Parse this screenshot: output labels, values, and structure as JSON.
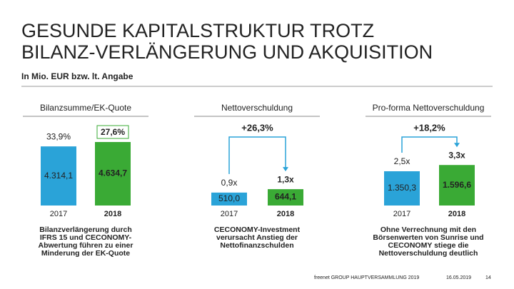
{
  "title": [
    "GESUNDE KAPITALSTRUKTUR TROTZ",
    "BILANZ-VERLÄNGERUNG UND AKQUISITION"
  ],
  "subtitle": "In Mio. EUR bzw. lt. Angabe",
  "chart_data": [
    {
      "type": "bar",
      "title": "Bilanzsumme/EK-Quote",
      "categories": [
        "2017",
        "2018"
      ],
      "values": [
        4314.1,
        4634.7
      ],
      "value_labels": [
        "4.314,1",
        "4.634,7"
      ],
      "ratios": [
        33.9,
        27.6
      ],
      "ratio_labels": [
        "33,9%",
        "27,6%"
      ],
      "colors": [
        "#2aa3d8",
        "#3aaa35"
      ],
      "ylim": [
        0,
        5000
      ],
      "note": [
        "Bilanzverlängerung durch",
        "IFRS 15 und CECONOMY-",
        "Abwertung führen zu einer",
        "Minderung der EK-Quote"
      ]
    },
    {
      "type": "bar",
      "title": "Nettoverschuldung",
      "categories": [
        "2017",
        "2018"
      ],
      "values": [
        510.0,
        644.1
      ],
      "value_labels": [
        "510,0",
        "644,1"
      ],
      "ratios": [
        0.9,
        1.3
      ],
      "ratio_labels": [
        "0,9x",
        "1,3x"
      ],
      "change": {
        "value": 26.3,
        "label": "+26,3%"
      },
      "colors": [
        "#2aa3d8",
        "#3aaa35"
      ],
      "ylim": [
        0,
        2700
      ],
      "note": [
        "CECONOMY-Investment",
        "verursacht Anstieg der",
        "Nettofinanzschulden"
      ]
    },
    {
      "type": "bar",
      "title": "Pro-forma Nettoverschuldung",
      "categories": [
        "2017",
        "2018"
      ],
      "values": [
        1350.3,
        1596.6
      ],
      "value_labels": [
        "1.350,3",
        "1.596,6"
      ],
      "ratios": [
        2.5,
        3.3
      ],
      "ratio_labels": [
        "2,5x",
        "3,3x"
      ],
      "change": {
        "value": 18.2,
        "label": "+18,2%"
      },
      "colors": [
        "#2aa3d8",
        "#3aaa35"
      ],
      "ylim": [
        0,
        2700
      ],
      "note": [
        "Ohne Verrechnung mit den",
        "Börsenwerten von Sunrise und",
        "CECONOMY stiege die",
        "Nettoverschuldung deutlich"
      ]
    }
  ],
  "footer": {
    "company": "freenet GROUP HAUPTVERSAMMLUNG 2019",
    "date": "16.05.2019",
    "page": "14"
  }
}
